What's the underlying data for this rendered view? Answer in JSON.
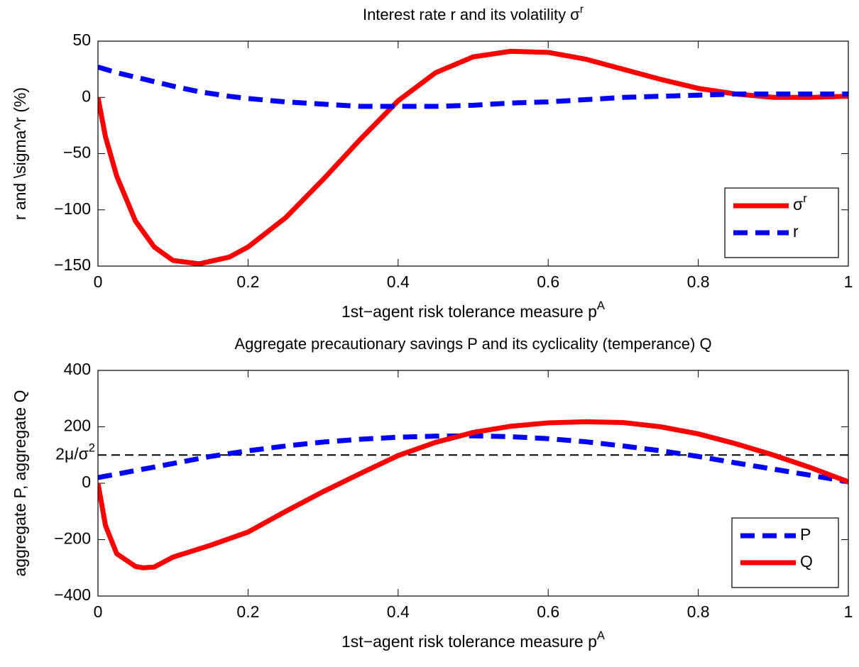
{
  "chart_data": [
    {
      "type": "line",
      "title": [
        "Interest rate r and its volatility σ",
        "r"
      ],
      "xlabel": [
        "1st−agent risk tolerance measure p",
        "A"
      ],
      "ylabel": "r and \\sigma^r (%)",
      "x": [
        0,
        0.01,
        0.025,
        0.05,
        0.075,
        0.1,
        0.135,
        0.175,
        0.2,
        0.25,
        0.3,
        0.35,
        0.4,
        0.45,
        0.5,
        0.55,
        0.6,
        0.65,
        0.7,
        0.75,
        0.8,
        0.85,
        0.9,
        0.95,
        1
      ],
      "series": [
        {
          "name": [
            "σ",
            "r"
          ],
          "color": "#ff0000",
          "style": "solid",
          "values": [
            0,
            -35,
            -70,
            -110,
            -133,
            -145,
            -148,
            -142,
            -133,
            -107,
            -73,
            -37,
            -3,
            22,
            36,
            41,
            40,
            34,
            25,
            16,
            8,
            3,
            0,
            0,
            1
          ]
        },
        {
          "name": "r",
          "color": "#0000ff",
          "style": "dashed",
          "values": [
            27,
            25,
            22,
            18,
            14,
            10,
            5,
            1,
            -1,
            -4,
            -6,
            -8,
            -8,
            -8,
            -7,
            -5,
            -4,
            -2,
            0,
            1,
            2,
            3,
            3,
            3,
            3
          ]
        }
      ],
      "xlim": [
        0,
        1
      ],
      "ylim": [
        -150,
        50
      ],
      "xticks": [
        0,
        0.2,
        0.4,
        0.6,
        0.8,
        1
      ],
      "yticks": [
        {
          "value": -150,
          "label": "−150"
        },
        {
          "value": -100,
          "label": "−100"
        },
        {
          "value": -50,
          "label": "−50"
        },
        0,
        50
      ],
      "legend": "lower right"
    },
    {
      "type": "line",
      "title": "Aggregate precautionary savings P and its cyclicality (temperance) Q",
      "xlabel": [
        "1st−agent risk tolerance measure p",
        "A"
      ],
      "ylabel": "aggregate P, aggregate Q",
      "x": [
        0,
        0.01,
        0.025,
        0.05,
        0.06,
        0.075,
        0.1,
        0.15,
        0.2,
        0.25,
        0.3,
        0.35,
        0.4,
        0.45,
        0.5,
        0.55,
        0.6,
        0.65,
        0.7,
        0.75,
        0.8,
        0.85,
        0.9,
        0.95,
        1
      ],
      "series": [
        {
          "name": "P",
          "color": "#0000ff",
          "style": "dashed",
          "values": [
            20,
            25,
            32,
            45,
            50,
            57,
            70,
            95,
            115,
            132,
            146,
            156,
            163,
            167,
            168,
            165,
            158,
            147,
            132,
            115,
            95,
            72,
            50,
            28,
            5
          ]
        },
        {
          "name": "Q",
          "color": "#ff0000",
          "style": "solid",
          "values": [
            0,
            -150,
            -250,
            -295,
            -300,
            -297,
            -262,
            -220,
            -173,
            -100,
            -30,
            35,
            98,
            145,
            180,
            202,
            214,
            218,
            215,
            200,
            175,
            140,
            100,
            55,
            5
          ]
        }
      ],
      "hline": {
        "value": 100,
        "label": [
          "2μ/σ",
          "2"
        ],
        "color": "#000000"
      },
      "xlim": [
        0,
        1
      ],
      "ylim": [
        -400,
        400
      ],
      "xticks": [
        0,
        0.2,
        0.4,
        0.6,
        0.8,
        1
      ],
      "yticks": [
        {
          "value": -400,
          "label": "−400"
        },
        {
          "value": -200,
          "label": "−200"
        },
        0,
        200,
        400
      ],
      "legend": "lower right"
    }
  ]
}
